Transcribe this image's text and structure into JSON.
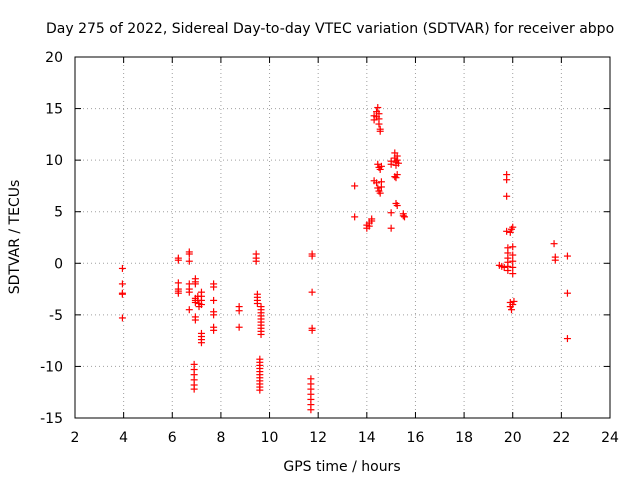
{
  "chart_data": {
    "type": "scatter",
    "title": "Day 275 of 2022, Sidereal Day-to-day VTEC variation (SDTVAR) for receiver abpo",
    "xlabel": "GPS time / hours",
    "ylabel": "SDTVAR / TECUs",
    "xlim": [
      2,
      24
    ],
    "ylim": [
      -15,
      20
    ],
    "xticks": [
      2,
      4,
      6,
      8,
      10,
      12,
      14,
      16,
      18,
      20,
      22,
      24
    ],
    "yticks": [
      -15,
      -10,
      -5,
      0,
      5,
      10,
      15,
      20
    ],
    "grid": true,
    "marker": "+",
    "color": "#ff0000",
    "series": [
      {
        "name": "SDTVAR",
        "points": [
          [
            3.95,
            -0.5
          ],
          [
            3.95,
            -2.0
          ],
          [
            3.95,
            -2.9
          ],
          [
            3.95,
            -3.0
          ],
          [
            3.95,
            -5.3
          ],
          [
            6.25,
            0.5
          ],
          [
            6.25,
            0.3
          ],
          [
            6.25,
            -1.9
          ],
          [
            6.25,
            -2.5
          ],
          [
            6.25,
            -2.7
          ],
          [
            6.25,
            -2.9
          ],
          [
            6.7,
            1.1
          ],
          [
            6.7,
            0.9
          ],
          [
            6.7,
            0.2
          ],
          [
            6.7,
            -2.0
          ],
          [
            6.7,
            -2.5
          ],
          [
            6.7,
            -2.8
          ],
          [
            6.7,
            -4.5
          ],
          [
            6.95,
            -1.5
          ],
          [
            6.95,
            -1.8
          ],
          [
            6.95,
            -2.0
          ],
          [
            6.95,
            -3.4
          ],
          [
            6.95,
            -3.6
          ],
          [
            6.95,
            -3.8
          ],
          [
            6.95,
            -5.2
          ],
          [
            6.95,
            -5.5
          ],
          [
            6.9,
            -9.8
          ],
          [
            6.9,
            -10.3
          ],
          [
            6.9,
            -10.8
          ],
          [
            6.9,
            -11.3
          ],
          [
            6.9,
            -11.8
          ],
          [
            6.9,
            -12.2
          ],
          [
            7.2,
            -2.8
          ],
          [
            7.2,
            -3.2
          ],
          [
            7.2,
            -3.6
          ],
          [
            7.2,
            -4.0
          ],
          [
            7.2,
            -6.8
          ],
          [
            7.2,
            -7.1
          ],
          [
            7.2,
            -7.4
          ],
          [
            7.2,
            -7.7
          ],
          [
            7.05,
            -3.2
          ],
          [
            7.05,
            -3.6
          ],
          [
            7.1,
            -3.9
          ],
          [
            7.1,
            -4.2
          ],
          [
            7.7,
            -2.0
          ],
          [
            7.7,
            -2.3
          ],
          [
            7.7,
            -3.6
          ],
          [
            7.7,
            -4.7
          ],
          [
            7.7,
            -5.0
          ],
          [
            7.7,
            -6.2
          ],
          [
            7.7,
            -6.5
          ],
          [
            8.75,
            -4.2
          ],
          [
            8.75,
            -4.6
          ],
          [
            8.75,
            -6.2
          ],
          [
            9.45,
            0.9
          ],
          [
            9.45,
            0.5
          ],
          [
            9.45,
            0.2
          ],
          [
            9.5,
            -3.0
          ],
          [
            9.5,
            -3.3
          ],
          [
            9.5,
            -3.6
          ],
          [
            9.5,
            -3.9
          ],
          [
            9.65,
            -4.2
          ],
          [
            9.65,
            -4.5
          ],
          [
            9.65,
            -4.8
          ],
          [
            9.65,
            -5.1
          ],
          [
            9.65,
            -5.4
          ],
          [
            9.65,
            -5.7
          ],
          [
            9.65,
            -6.0
          ],
          [
            9.65,
            -6.3
          ],
          [
            9.65,
            -6.6
          ],
          [
            9.65,
            -6.9
          ],
          [
            9.6,
            -9.3
          ],
          [
            9.6,
            -9.6
          ],
          [
            9.6,
            -9.9
          ],
          [
            9.6,
            -10.2
          ],
          [
            9.6,
            -10.5
          ],
          [
            9.6,
            -10.8
          ],
          [
            9.6,
            -11.1
          ],
          [
            9.6,
            -11.4
          ],
          [
            9.6,
            -11.7
          ],
          [
            9.6,
            -12.0
          ],
          [
            9.6,
            -12.3
          ],
          [
            11.75,
            0.9
          ],
          [
            11.75,
            0.7
          ],
          [
            11.75,
            -2.8
          ],
          [
            11.75,
            -6.3
          ],
          [
            11.75,
            -6.5
          ],
          [
            11.7,
            -11.2
          ],
          [
            11.7,
            -11.7
          ],
          [
            11.7,
            -12.2
          ],
          [
            11.7,
            -12.7
          ],
          [
            11.7,
            -13.2
          ],
          [
            11.7,
            -13.7
          ],
          [
            11.7,
            -14.2
          ],
          [
            13.5,
            7.5
          ],
          [
            13.5,
            4.5
          ],
          [
            14.0,
            3.7
          ],
          [
            14.0,
            3.4
          ],
          [
            14.1,
            3.6
          ],
          [
            14.1,
            3.9
          ],
          [
            14.2,
            4.1
          ],
          [
            14.2,
            4.3
          ],
          [
            14.3,
            14.3
          ],
          [
            14.3,
            13.9
          ],
          [
            14.4,
            14.7
          ],
          [
            14.4,
            14.2
          ],
          [
            14.45,
            15.1
          ],
          [
            14.5,
            14.5
          ],
          [
            14.5,
            14.0
          ],
          [
            14.5,
            13.5
          ],
          [
            14.55,
            13.0
          ],
          [
            14.55,
            12.8
          ],
          [
            14.3,
            8.0
          ],
          [
            14.4,
            7.8
          ],
          [
            14.45,
            7.3
          ],
          [
            14.5,
            7.0
          ],
          [
            14.55,
            6.8
          ],
          [
            14.6,
            7.4
          ],
          [
            14.6,
            7.9
          ],
          [
            14.45,
            9.6
          ],
          [
            14.5,
            9.3
          ],
          [
            14.55,
            9.1
          ],
          [
            14.6,
            9.4
          ],
          [
            15.0,
            9.9
          ],
          [
            15.0,
            9.6
          ],
          [
            15.0,
            4.9
          ],
          [
            15.0,
            3.4
          ],
          [
            15.15,
            10.7
          ],
          [
            15.15,
            10.2
          ],
          [
            15.2,
            9.8
          ],
          [
            15.2,
            9.5
          ],
          [
            15.25,
            10.4
          ],
          [
            15.25,
            10.0
          ],
          [
            15.3,
            9.7
          ],
          [
            15.15,
            8.4
          ],
          [
            15.2,
            8.3
          ],
          [
            15.25,
            8.6
          ],
          [
            15.2,
            5.8
          ],
          [
            15.25,
            5.6
          ],
          [
            15.5,
            4.6
          ],
          [
            15.5,
            4.8
          ],
          [
            15.55,
            4.5
          ],
          [
            19.45,
            -0.2
          ],
          [
            19.55,
            -0.3
          ],
          [
            19.65,
            -0.4
          ],
          [
            19.75,
            8.6
          ],
          [
            19.75,
            8.1
          ],
          [
            19.75,
            6.5
          ],
          [
            19.75,
            3.1
          ],
          [
            19.8,
            1.5
          ],
          [
            19.8,
            1.0
          ],
          [
            19.8,
            0.5
          ],
          [
            19.8,
            0.1
          ],
          [
            19.8,
            -0.3
          ],
          [
            19.8,
            -0.7
          ],
          [
            19.95,
            3.3
          ],
          [
            20.0,
            3.5
          ],
          [
            19.9,
            3.0
          ],
          [
            20.0,
            1.6
          ],
          [
            20.0,
            0.8
          ],
          [
            20.0,
            0.2
          ],
          [
            20.0,
            -0.4
          ],
          [
            20.0,
            -1.0
          ],
          [
            19.9,
            -3.8
          ],
          [
            19.9,
            -4.2
          ],
          [
            19.95,
            -4.5
          ],
          [
            20.0,
            -4.0
          ],
          [
            20.05,
            -3.7
          ],
          [
            21.7,
            1.9
          ],
          [
            21.75,
            0.6
          ],
          [
            21.75,
            0.3
          ],
          [
            22.25,
            0.7
          ],
          [
            22.25,
            -2.9
          ],
          [
            22.25,
            -7.3
          ]
        ]
      }
    ]
  }
}
